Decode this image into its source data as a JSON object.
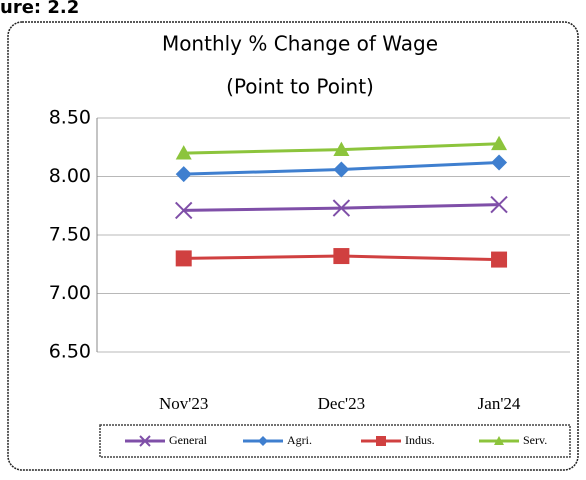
{
  "caption": "ure: 2.2",
  "chart_data": {
    "type": "line",
    "title": "Monthly % Change of Wage",
    "subtitle": "(Point to Point)",
    "categories": [
      "Nov'23",
      "Dec'23",
      "Jan'24"
    ],
    "series": [
      {
        "name": "General",
        "color": "#7f4fa8",
        "marker": "x",
        "values": [
          7.71,
          7.73,
          7.76
        ]
      },
      {
        "name": "Agri.",
        "color": "#3f7fcf",
        "marker": "diamond",
        "values": [
          8.02,
          8.06,
          8.12
        ]
      },
      {
        "name": "Indus.",
        "color": "#d04040",
        "marker": "square",
        "values": [
          7.3,
          7.32,
          7.29
        ]
      },
      {
        "name": "Serv.",
        "color": "#8cc43c",
        "marker": "triangle",
        "values": [
          8.2,
          8.23,
          8.28
        ]
      }
    ],
    "ylim": [
      6.5,
      8.5
    ],
    "yticks": [
      {
        "value": 6.5,
        "label": "6.50"
      },
      {
        "value": 7,
        "label": "7.00"
      },
      {
        "value": 7.5,
        "label": "7.50"
      },
      {
        "value": 8,
        "label": "8.00"
      },
      {
        "value": 8.5,
        "label": "8.50"
      }
    ],
    "grid": true,
    "legend": "bottom"
  }
}
